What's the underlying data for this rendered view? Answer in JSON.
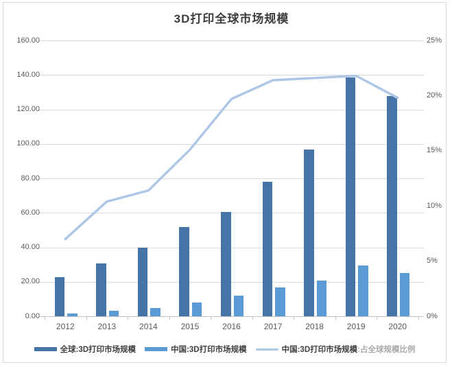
{
  "page_title": "3D打印全球市场规模",
  "chart_data": {
    "type": "combo_bar_line",
    "title": "3D打印全球市场规模",
    "categories": [
      "2012",
      "2013",
      "2014",
      "2015",
      "2016",
      "2017",
      "2018",
      "2019",
      "2020"
    ],
    "series": [
      {
        "name": "全球:3D打印市场规模",
        "chart_type": "bar",
        "axis": "left",
        "color": "#4674a6",
        "values": [
          22.8,
          30.7,
          39.7,
          51.7,
          60.6,
          78.0,
          96.8,
          138.7,
          127.6
        ]
      },
      {
        "name": "中国:3D打印市场规模",
        "chart_type": "bar",
        "axis": "left",
        "color": "#5b9bd5",
        "values": [
          1.6,
          3.2,
          4.8,
          7.8,
          11.8,
          16.7,
          20.9,
          29.6,
          25.0
        ]
      },
      {
        "name": "中国:3D打印市场规模:占全球规模比例",
        "chart_type": "line",
        "axis": "right",
        "color": "#aec7e6",
        "values": [
          7.0,
          10.4,
          11.4,
          15.1,
          19.7,
          21.4,
          21.6,
          21.8,
          19.8
        ]
      }
    ],
    "left_axis": {
      "min": 0,
      "max": 160,
      "step": 20,
      "ticks": [
        "160.00",
        "140.00",
        "120.00",
        "100.00",
        "80.00",
        "60.00",
        "40.00",
        "20.00",
        "0.00"
      ]
    },
    "right_axis": {
      "min": 0,
      "max": 25,
      "step": 5,
      "ticks": [
        "25%",
        "20%",
        "15%",
        "10%",
        "5%",
        "0%"
      ]
    },
    "grid": true,
    "legend_position": "bottom",
    "legend_item3_solid": "中国:3D打印市场规模",
    "legend_item3_faded": ":占全球规模比例",
    "colors": {
      "gridline": "#d9d9d9",
      "axis_line": "#bfbfbf",
      "tick_label": "#595959",
      "title": "#3d3d3d",
      "legend_text": "#404040"
    }
  }
}
